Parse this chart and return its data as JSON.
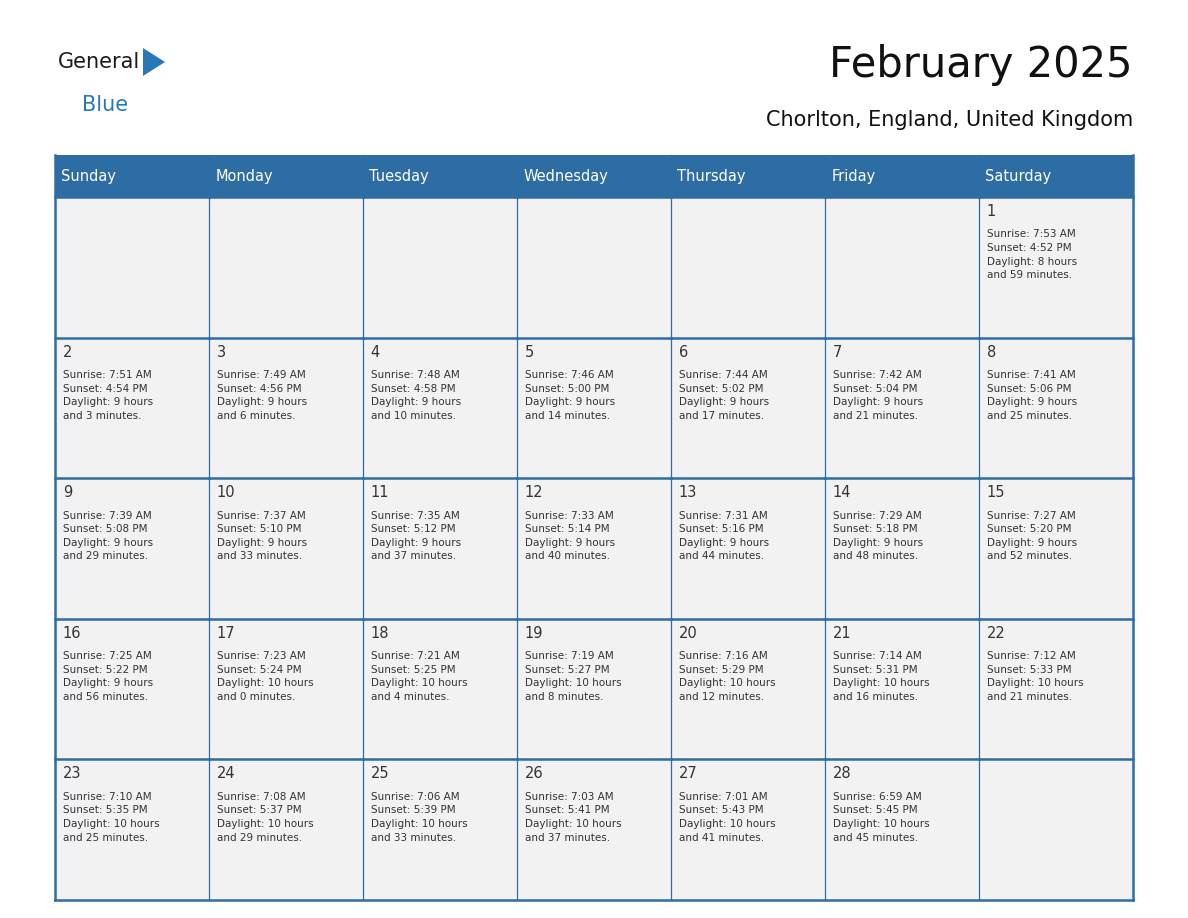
{
  "title": "February 2025",
  "subtitle": "Chorlton, England, United Kingdom",
  "days_of_week": [
    "Sunday",
    "Monday",
    "Tuesday",
    "Wednesday",
    "Thursday",
    "Friday",
    "Saturday"
  ],
  "header_bg": "#2E6DA4",
  "header_text_color": "#FFFFFF",
  "cell_bg": "#F2F2F2",
  "cell_text_color": "#333333",
  "grid_line_color": "#2E6DA4",
  "title_color": "#111111",
  "subtitle_color": "#111111",
  "logo_general_color": "#1a1a1a",
  "logo_blue_color": "#2878b8",
  "calendar_data": [
    [
      {
        "day": null,
        "info": ""
      },
      {
        "day": null,
        "info": ""
      },
      {
        "day": null,
        "info": ""
      },
      {
        "day": null,
        "info": ""
      },
      {
        "day": null,
        "info": ""
      },
      {
        "day": null,
        "info": ""
      },
      {
        "day": 1,
        "info": "Sunrise: 7:53 AM\nSunset: 4:52 PM\nDaylight: 8 hours\nand 59 minutes."
      }
    ],
    [
      {
        "day": 2,
        "info": "Sunrise: 7:51 AM\nSunset: 4:54 PM\nDaylight: 9 hours\nand 3 minutes."
      },
      {
        "day": 3,
        "info": "Sunrise: 7:49 AM\nSunset: 4:56 PM\nDaylight: 9 hours\nand 6 minutes."
      },
      {
        "day": 4,
        "info": "Sunrise: 7:48 AM\nSunset: 4:58 PM\nDaylight: 9 hours\nand 10 minutes."
      },
      {
        "day": 5,
        "info": "Sunrise: 7:46 AM\nSunset: 5:00 PM\nDaylight: 9 hours\nand 14 minutes."
      },
      {
        "day": 6,
        "info": "Sunrise: 7:44 AM\nSunset: 5:02 PM\nDaylight: 9 hours\nand 17 minutes."
      },
      {
        "day": 7,
        "info": "Sunrise: 7:42 AM\nSunset: 5:04 PM\nDaylight: 9 hours\nand 21 minutes."
      },
      {
        "day": 8,
        "info": "Sunrise: 7:41 AM\nSunset: 5:06 PM\nDaylight: 9 hours\nand 25 minutes."
      }
    ],
    [
      {
        "day": 9,
        "info": "Sunrise: 7:39 AM\nSunset: 5:08 PM\nDaylight: 9 hours\nand 29 minutes."
      },
      {
        "day": 10,
        "info": "Sunrise: 7:37 AM\nSunset: 5:10 PM\nDaylight: 9 hours\nand 33 minutes."
      },
      {
        "day": 11,
        "info": "Sunrise: 7:35 AM\nSunset: 5:12 PM\nDaylight: 9 hours\nand 37 minutes."
      },
      {
        "day": 12,
        "info": "Sunrise: 7:33 AM\nSunset: 5:14 PM\nDaylight: 9 hours\nand 40 minutes."
      },
      {
        "day": 13,
        "info": "Sunrise: 7:31 AM\nSunset: 5:16 PM\nDaylight: 9 hours\nand 44 minutes."
      },
      {
        "day": 14,
        "info": "Sunrise: 7:29 AM\nSunset: 5:18 PM\nDaylight: 9 hours\nand 48 minutes."
      },
      {
        "day": 15,
        "info": "Sunrise: 7:27 AM\nSunset: 5:20 PM\nDaylight: 9 hours\nand 52 minutes."
      }
    ],
    [
      {
        "day": 16,
        "info": "Sunrise: 7:25 AM\nSunset: 5:22 PM\nDaylight: 9 hours\nand 56 minutes."
      },
      {
        "day": 17,
        "info": "Sunrise: 7:23 AM\nSunset: 5:24 PM\nDaylight: 10 hours\nand 0 minutes."
      },
      {
        "day": 18,
        "info": "Sunrise: 7:21 AM\nSunset: 5:25 PM\nDaylight: 10 hours\nand 4 minutes."
      },
      {
        "day": 19,
        "info": "Sunrise: 7:19 AM\nSunset: 5:27 PM\nDaylight: 10 hours\nand 8 minutes."
      },
      {
        "day": 20,
        "info": "Sunrise: 7:16 AM\nSunset: 5:29 PM\nDaylight: 10 hours\nand 12 minutes."
      },
      {
        "day": 21,
        "info": "Sunrise: 7:14 AM\nSunset: 5:31 PM\nDaylight: 10 hours\nand 16 minutes."
      },
      {
        "day": 22,
        "info": "Sunrise: 7:12 AM\nSunset: 5:33 PM\nDaylight: 10 hours\nand 21 minutes."
      }
    ],
    [
      {
        "day": 23,
        "info": "Sunrise: 7:10 AM\nSunset: 5:35 PM\nDaylight: 10 hours\nand 25 minutes."
      },
      {
        "day": 24,
        "info": "Sunrise: 7:08 AM\nSunset: 5:37 PM\nDaylight: 10 hours\nand 29 minutes."
      },
      {
        "day": 25,
        "info": "Sunrise: 7:06 AM\nSunset: 5:39 PM\nDaylight: 10 hours\nand 33 minutes."
      },
      {
        "day": 26,
        "info": "Sunrise: 7:03 AM\nSunset: 5:41 PM\nDaylight: 10 hours\nand 37 minutes."
      },
      {
        "day": 27,
        "info": "Sunrise: 7:01 AM\nSunset: 5:43 PM\nDaylight: 10 hours\nand 41 minutes."
      },
      {
        "day": 28,
        "info": "Sunrise: 6:59 AM\nSunset: 5:45 PM\nDaylight: 10 hours\nand 45 minutes."
      },
      {
        "day": null,
        "info": ""
      }
    ]
  ]
}
